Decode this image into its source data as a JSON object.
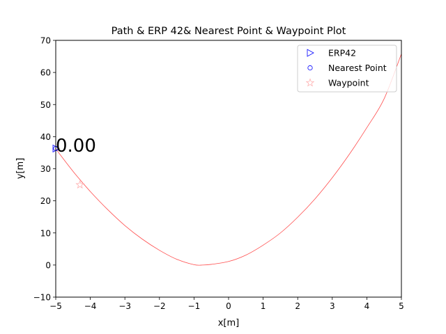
{
  "chart_data": {
    "type": "line",
    "title": "Path & ERP 42& Nearest Point & Waypoint Plot",
    "xlabel": "x[m]",
    "ylabel": "y[m]",
    "xlim": [
      -5,
      5
    ],
    "ylim": [
      -10,
      70
    ],
    "xticks": [
      -5,
      -4,
      -3,
      -2,
      -1,
      0,
      1,
      2,
      3,
      4,
      5
    ],
    "yticks": [
      -10,
      0,
      10,
      20,
      30,
      40,
      50,
      60,
      70
    ],
    "grid": false,
    "legend_position": "top-right",
    "path": {
      "color": "#ff0000",
      "x": [
        -5,
        -4.5,
        -4,
        -3.5,
        -3,
        -2.5,
        -2,
        -1.5,
        -1,
        -0.75,
        -0.5,
        0,
        0.5,
        1,
        1.5,
        2,
        2.5,
        3,
        3.5,
        4,
        4.5,
        5
      ],
      "y": [
        36.2,
        29.2,
        22.9,
        17.3,
        12.3,
        8.1,
        4.6,
        1.8,
        0.1,
        0,
        0.2,
        1.1,
        3.1,
        6.2,
        10.0,
        14.9,
        20.6,
        27.2,
        34.6,
        42.8,
        51.8,
        65.8
      ]
    },
    "series": [
      {
        "name": "ERP42",
        "marker": "triangle-right",
        "color": "#0000ff",
        "x": [
          -5.0
        ],
        "y": [
          36.3
        ]
      },
      {
        "name": "Nearest Point",
        "marker": "circle",
        "color": "#0000ff",
        "x": [
          -5.0
        ],
        "y": [
          36.3
        ]
      },
      {
        "name": "Waypoint",
        "marker": "star",
        "color": "#ffb0b0",
        "x": [
          -4.3
        ],
        "y": [
          25.0
        ]
      }
    ],
    "annotation": {
      "text": "0.00",
      "x": -5.0,
      "y": 37.5
    }
  }
}
